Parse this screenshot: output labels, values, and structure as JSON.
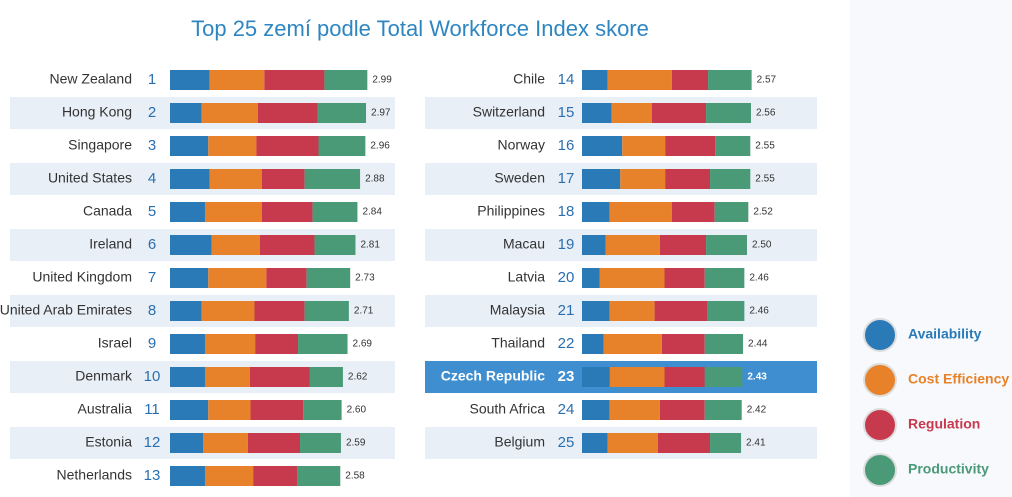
{
  "chart_data": {
    "type": "bar",
    "title": "Top 25 zemí podle Total Workforce Index skore",
    "categories": [
      "New Zealand",
      "Hong Kong",
      "Singapore",
      "United States",
      "Canada",
      "Ireland",
      "United Kingdom",
      "United Arab Emirates",
      "Israel",
      "Denmark",
      "Australia",
      "Estonia",
      "Netherlands",
      "Chile",
      "Switzerland",
      "Norway",
      "Sweden",
      "Philippines",
      "Macau",
      "Latvia",
      "Malaysia",
      "Thailand",
      "Czech Republic",
      "South Africa",
      "Belgium"
    ],
    "ranks": [
      1,
      2,
      3,
      4,
      5,
      6,
      7,
      8,
      9,
      10,
      11,
      12,
      13,
      14,
      15,
      16,
      17,
      18,
      19,
      20,
      21,
      22,
      23,
      24,
      25
    ],
    "totals": [
      2.99,
      2.97,
      2.96,
      2.88,
      2.84,
      2.81,
      2.73,
      2.71,
      2.69,
      2.62,
      2.6,
      2.59,
      2.58,
      2.57,
      2.56,
      2.55,
      2.55,
      2.52,
      2.5,
      2.46,
      2.46,
      2.44,
      2.43,
      2.42,
      2.41
    ],
    "value_labels": [
      "2.99",
      "2.97",
      "2.96",
      "2.88",
      "2.84",
      "2.81",
      "2.73",
      "2.71",
      "2.69",
      "2.62",
      "2.60",
      "2.59",
      "2.58",
      "2.57",
      "2.56",
      "2.55",
      "2.55",
      "2.52",
      "2.50",
      "2.46",
      "2.46",
      "2.44",
      "2.43",
      "2.42",
      "2.41"
    ],
    "highlight": 22,
    "series": [
      {
        "name": "Availability",
        "color": "#2a7ab8",
        "values": [
          0.6,
          0.48,
          0.58,
          0.6,
          0.53,
          0.63,
          0.58,
          0.48,
          0.53,
          0.53,
          0.58,
          0.5,
          0.53,
          0.39,
          0.45,
          0.61,
          0.58,
          0.42,
          0.36,
          0.27,
          0.42,
          0.33,
          0.42,
          0.42,
          0.39
        ]
      },
      {
        "name": "Cost Efficiency",
        "color": "#e8822a",
        "values": [
          0.83,
          0.85,
          0.73,
          0.79,
          0.86,
          0.73,
          0.88,
          0.8,
          0.76,
          0.68,
          0.64,
          0.68,
          0.73,
          0.97,
          0.61,
          0.65,
          0.68,
          0.94,
          0.82,
          0.98,
          0.68,
          0.88,
          0.83,
          0.76,
          0.76
        ]
      },
      {
        "name": "Regulation",
        "color": "#c73a4e",
        "values": [
          0.91,
          0.91,
          0.94,
          0.65,
          0.77,
          0.83,
          0.61,
          0.76,
          0.65,
          0.91,
          0.8,
          0.79,
          0.67,
          0.55,
          0.82,
          0.76,
          0.68,
          0.65,
          0.7,
          0.61,
          0.8,
          0.65,
          0.61,
          0.68,
          0.79
        ]
      },
      {
        "name": "Productivity",
        "color": "#4a9a78",
        "values": [
          0.65,
          0.73,
          0.71,
          0.84,
          0.68,
          0.62,
          0.66,
          0.67,
          0.75,
          0.5,
          0.58,
          0.62,
          0.65,
          0.66,
          0.68,
          0.53,
          0.61,
          0.51,
          0.62,
          0.6,
          0.56,
          0.58,
          0.57,
          0.56,
          0.47
        ]
      }
    ]
  }
}
